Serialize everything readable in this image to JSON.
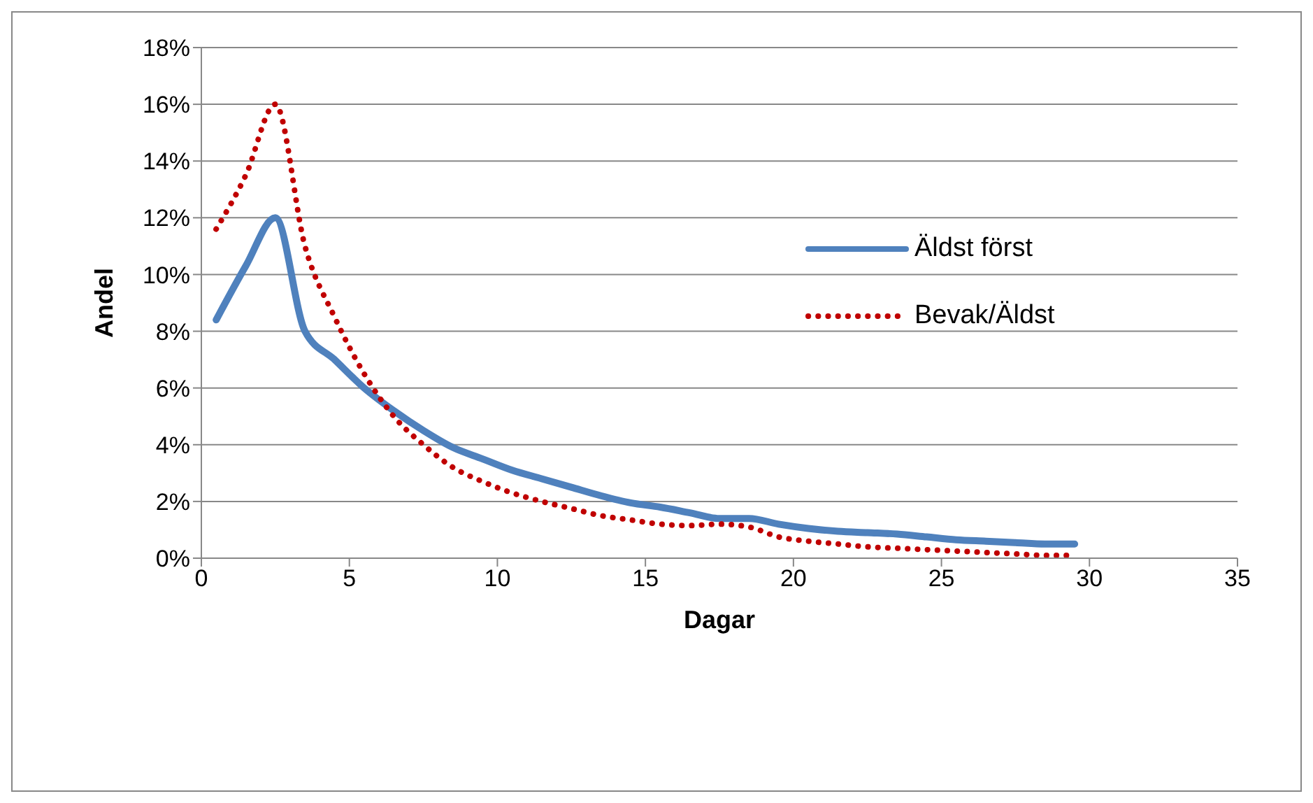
{
  "chart_data": {
    "type": "line",
    "xlabel": "Dagar",
    "ylabel": "Andel",
    "x": [
      0.5,
      1.5,
      2.5,
      3.5,
      4.5,
      5.5,
      6.5,
      7.5,
      8.5,
      9.5,
      10.5,
      11.5,
      12.5,
      13.5,
      14.5,
      15.5,
      16.5,
      17.5,
      18.5,
      19.5,
      20.5,
      21.5,
      22.5,
      23.5,
      24.5,
      25.5,
      26.5,
      27.5,
      28.5,
      29.5
    ],
    "series": [
      {
        "name": "Äldst först",
        "color": "#4f81bd",
        "line_style": "solid",
        "values": [
          8.4,
          10.3,
          12.0,
          8.0,
          7.0,
          6.0,
          5.2,
          4.5,
          3.9,
          3.5,
          3.1,
          2.8,
          2.5,
          2.2,
          1.95,
          1.8,
          1.6,
          1.4,
          1.4,
          1.2,
          1.05,
          0.95,
          0.9,
          0.85,
          0.75,
          0.65,
          0.6,
          0.55,
          0.5,
          0.5
        ]
      },
      {
        "name": "Bevak/Äldst",
        "color": "#c00000",
        "line_style": "dotted",
        "values": [
          11.6,
          13.5,
          16.0,
          11.0,
          8.5,
          6.5,
          5.0,
          4.0,
          3.2,
          2.7,
          2.3,
          2.0,
          1.75,
          1.5,
          1.35,
          1.2,
          1.15,
          1.2,
          1.1,
          0.75,
          0.6,
          0.5,
          0.4,
          0.35,
          0.3,
          0.25,
          0.2,
          0.15,
          0.1,
          0.1
        ]
      }
    ],
    "xlim": [
      0,
      35
    ],
    "xticks": [
      0,
      5,
      10,
      15,
      20,
      25,
      30,
      35
    ],
    "ylim": [
      0,
      18
    ],
    "yticks": [
      {
        "value": 0,
        "label": "0%"
      },
      {
        "value": 2,
        "label": "2%"
      },
      {
        "value": 4,
        "label": "4%"
      },
      {
        "value": 6,
        "label": "6%"
      },
      {
        "value": 8,
        "label": "8%"
      },
      {
        "value": 10,
        "label": "10%"
      },
      {
        "value": 12,
        "label": "12%"
      },
      {
        "value": 14,
        "label": "14%"
      },
      {
        "value": 16,
        "label": "16%"
      },
      {
        "value": 18,
        "label": "18%"
      }
    ],
    "grid": "y",
    "legend": "right",
    "marker": "none"
  }
}
